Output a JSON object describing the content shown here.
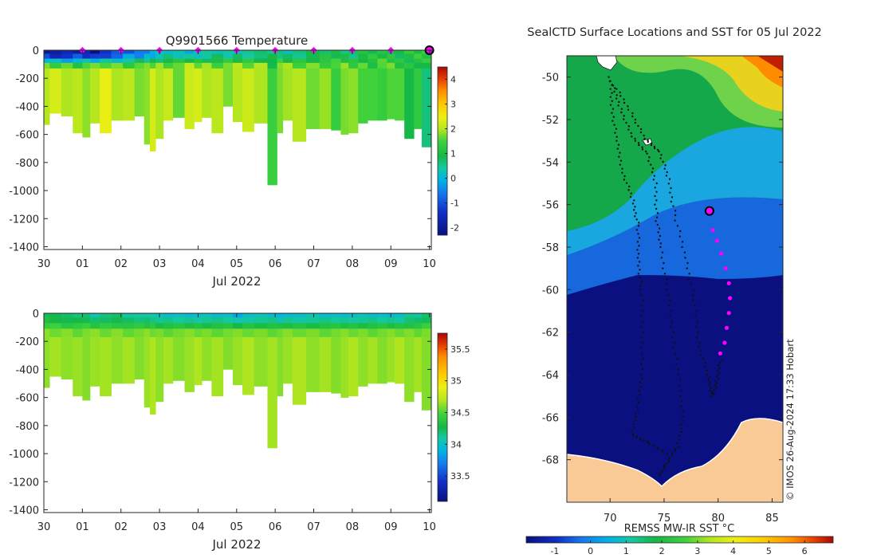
{
  "panels": {
    "temperature": {
      "title": "Q9901566  Temperature",
      "xlabel": "Jul 2022"
    },
    "salinity": {
      "title": "",
      "xlabel": "Jul 2022"
    },
    "map": {
      "title": "SealCTD Surface Locations and SST for 05 Jul 2022",
      "colorbar_label": "REMSS MW-IR SST °C",
      "credit": "© IMOS 26-Aug-2024 17:33 Hobart"
    }
  },
  "colors": {
    "land": "#f9c996",
    "deep_blue": "#0a1080",
    "marker": "#ff00ff"
  },
  "chart_data": [
    {
      "type": "heatmap",
      "name": "temperature-section",
      "title": "Q9901566  Temperature",
      "xlabel": "Jul 2022",
      "ylabel": "",
      "x_tick_labels": [
        "30",
        "01",
        "02",
        "03",
        "04",
        "05",
        "06",
        "07",
        "08",
        "09",
        "10"
      ],
      "x_ticks_days": [
        0,
        1,
        2,
        3,
        4,
        5,
        6,
        7,
        8,
        9,
        10
      ],
      "xlim_days": [
        0,
        10.05
      ],
      "ylim": [
        -1420,
        0
      ],
      "y_ticks": [
        0,
        -200,
        -400,
        -600,
        -800,
        -1000,
        -1200,
        -1400
      ],
      "y_tick_labels": [
        "0",
        "-200",
        "-400",
        "-600",
        "-800",
        "-1000",
        "-1200",
        "-1400"
      ],
      "colorbar_ticks": [
        4,
        3,
        2,
        1,
        0,
        -1,
        -2
      ],
      "colorbar_tick_labels": [
        "4",
        "3",
        "2",
        "1",
        "0",
        "-1",
        "-2"
      ],
      "colorbar_range": [
        -2.3,
        4.5
      ],
      "surface_marker_days": [
        1,
        2,
        3,
        4,
        5,
        6,
        7,
        8,
        9
      ],
      "latest_marker_day": 10,
      "profile_days": [
        0,
        0.3,
        0.6,
        0.9,
        1.1,
        1.3,
        1.6,
        1.9,
        2.2,
        2.5,
        2.7,
        2.8,
        3.0,
        3.2,
        3.5,
        3.8,
        4.0,
        4.2,
        4.5,
        4.8,
        5.0,
        5.3,
        5.6,
        6.0,
        6.1,
        6.3,
        6.6,
        7.0,
        7.3,
        7.6,
        7.8,
        8.0,
        8.3,
        8.5,
        8.8,
        9.0,
        9.2,
        9.5,
        9.7,
        9.9
      ],
      "max_depth_m": [
        -530,
        -450,
        -470,
        -590,
        -620,
        -520,
        -590,
        -500,
        -500,
        -470,
        -670,
        -720,
        -630,
        -500,
        -480,
        -560,
        -510,
        -480,
        -590,
        -400,
        -510,
        -580,
        -520,
        -960,
        -590,
        -500,
        -650,
        -560,
        -560,
        -570,
        -600,
        -590,
        -520,
        -500,
        -500,
        -490,
        -500,
        -630,
        -560,
        -690
      ],
      "surface_temp_c": [
        -1.8,
        -1.9,
        -2.0,
        -1.8,
        -1.9,
        -2.0,
        -1.5,
        -1.4,
        -1.0,
        -0.9,
        -0.5,
        -0.3,
        -0.2,
        0.0,
        0.0,
        -0.1,
        0.1,
        0.0,
        0.2,
        0.1,
        0.3,
        0.4,
        0.3,
        0.5,
        0.4,
        0.3,
        0.5,
        0.6,
        0.7,
        0.8,
        0.7,
        0.6,
        0.8,
        0.9,
        1.0,
        1.0,
        0.9,
        1.0,
        1.1,
        1.2
      ],
      "deep_temp_c": [
        2.0,
        2.0,
        2.1,
        1.9,
        2.1,
        2.0,
        2.2,
        2.1,
        1.9,
        2.0,
        1.8,
        2.0,
        2.1,
        2.0,
        1.9,
        2.2,
        2.0,
        2.1,
        1.9,
        2.0,
        2.0,
        1.9,
        2.1,
        1.2,
        2.0,
        1.9,
        1.7,
        1.8,
        1.7,
        1.6,
        1.7,
        1.5,
        1.6,
        1.3,
        1.6,
        1.5,
        1.2,
        1.0,
        1.1,
        0.8
      ]
    },
    {
      "type": "heatmap",
      "name": "salinity-section",
      "title": "",
      "xlabel": "Jul 2022",
      "ylabel": "",
      "x_tick_labels": [
        "30",
        "01",
        "02",
        "03",
        "04",
        "05",
        "06",
        "07",
        "08",
        "09",
        "10"
      ],
      "x_ticks_days": [
        0,
        1,
        2,
        3,
        4,
        5,
        6,
        7,
        8,
        9,
        10
      ],
      "xlim_days": [
        0,
        10.05
      ],
      "ylim": [
        -1420,
        0
      ],
      "y_ticks": [
        0,
        -200,
        -400,
        -600,
        -800,
        -1000,
        -1200,
        -1400
      ],
      "y_tick_labels": [
        "0",
        "-200",
        "-400",
        "-600",
        "-800",
        "-1000",
        "-1200",
        "-1400"
      ],
      "colorbar_ticks": [
        35.5,
        35,
        34.5,
        34,
        33.5
      ],
      "colorbar_tick_labels": [
        "35.5",
        "35",
        "34.5",
        "34",
        "33.5"
      ],
      "colorbar_range": [
        33.1,
        35.75
      ],
      "profile_days": [
        0,
        0.3,
        0.6,
        0.9,
        1.1,
        1.3,
        1.6,
        1.9,
        2.2,
        2.5,
        2.7,
        2.8,
        3.0,
        3.2,
        3.5,
        3.8,
        4.0,
        4.2,
        4.5,
        4.8,
        5.0,
        5.3,
        5.6,
        6.0,
        6.1,
        6.3,
        6.6,
        7.0,
        7.3,
        7.6,
        7.8,
        8.0,
        8.3,
        8.5,
        8.8,
        9.0,
        9.2,
        9.5,
        9.7,
        9.9
      ],
      "max_depth_m": [
        -530,
        -450,
        -470,
        -590,
        -620,
        -520,
        -590,
        -500,
        -500,
        -470,
        -670,
        -720,
        -630,
        -500,
        -480,
        -560,
        -510,
        -480,
        -590,
        -400,
        -510,
        -580,
        -520,
        -960,
        -590,
        -500,
        -650,
        -560,
        -560,
        -570,
        -600,
        -590,
        -520,
        -500,
        -500,
        -490,
        -500,
        -630,
        -560,
        -690
      ],
      "surface_sal": [
        34.3,
        34.3,
        34.2,
        34.2,
        34.2,
        34.1,
        34.2,
        34.2,
        34.1,
        34.1,
        34.1,
        34.1,
        34.0,
        34.0,
        34.0,
        34.0,
        34.0,
        34.0,
        34.0,
        34.0,
        33.9,
        34.0,
        34.0,
        34.0,
        33.9,
        34.0,
        34.0,
        34.0,
        34.0,
        34.0,
        34.0,
        34.0,
        34.0,
        34.0,
        34.0,
        34.0,
        34.0,
        34.1,
        34.1,
        34.2
      ],
      "deep_sal": [
        34.7,
        34.7,
        34.72,
        34.7,
        34.72,
        34.72,
        34.7,
        34.72,
        34.72,
        34.72,
        34.72,
        34.72,
        34.72,
        34.72,
        34.72,
        34.72,
        34.72,
        34.72,
        34.72,
        34.72,
        34.72,
        34.72,
        34.72,
        34.72,
        34.72,
        34.72,
        34.72,
        34.72,
        34.72,
        34.72,
        34.72,
        34.72,
        34.72,
        34.72,
        34.72,
        34.72,
        34.72,
        34.72,
        34.72,
        34.72
      ]
    },
    {
      "type": "heatmap",
      "name": "sst-map",
      "title": "SealCTD Surface Locations and SST for 05 Jul 2022",
      "xlabel": "REMSS MW-IR SST °C",
      "lon_range": [
        66,
        86
      ],
      "lat_range": [
        -70,
        -49
      ],
      "x_ticks": [
        70,
        75,
        80,
        85
      ],
      "x_tick_labels": [
        "70",
        "75",
        "80",
        "85"
      ],
      "y_ticks": [
        -50,
        -52,
        -54,
        -56,
        -58,
        -60,
        -62,
        -64,
        -66,
        -68
      ],
      "y_tick_labels": [
        "-50",
        "-52",
        "-54",
        "-56",
        "-58",
        "-60",
        "-62",
        "-64",
        "-66",
        "-68"
      ],
      "colorbar_ticks": [
        -1,
        0,
        1,
        2,
        3,
        4,
        5,
        6
      ],
      "colorbar_tick_labels": [
        "-1",
        "0",
        "1",
        "2",
        "3",
        "4",
        "5",
        "6"
      ],
      "colorbar_range": [
        -1.8,
        6.8
      ],
      "recent_positions": [
        [
          79.5,
          -57.2
        ],
        [
          79.9,
          -57.7
        ],
        [
          80.3,
          -58.3
        ],
        [
          80.7,
          -59.0
        ],
        [
          81.0,
          -59.7
        ],
        [
          81.1,
          -60.4
        ],
        [
          81.0,
          -61.1
        ],
        [
          80.8,
          -61.8
        ],
        [
          80.6,
          -62.5
        ],
        [
          80.2,
          -63.0
        ]
      ],
      "latest_position": [
        79.2,
        -56.3
      ],
      "track_west": [
        [
          70.0,
          -50.0
        ],
        [
          70.2,
          -51.5
        ],
        [
          70.6,
          -53.0
        ],
        [
          71.2,
          -54.5
        ],
        [
          72.1,
          -55.8
        ],
        [
          72.6,
          -57.0
        ],
        [
          72.6,
          -58.5
        ],
        [
          72.9,
          -60.0
        ],
        [
          73.0,
          -62.0
        ],
        [
          72.9,
          -64.0
        ],
        [
          72.6,
          -65.5
        ],
        [
          72.0,
          -66.8
        ],
        [
          73.5,
          -67.2
        ],
        [
          75.5,
          -67.8
        ]
      ],
      "track_mid": [
        [
          70.1,
          -50.2
        ],
        [
          71.0,
          -51.5
        ],
        [
          72.0,
          -52.8
        ],
        [
          73.5,
          -53.6
        ],
        [
          74.2,
          -55.0
        ],
        [
          74.3,
          -56.6
        ],
        [
          74.7,
          -58.0
        ],
        [
          75.3,
          -60.0
        ],
        [
          75.8,
          -62.0
        ],
        [
          76.3,
          -64.0
        ],
        [
          76.8,
          -66.0
        ],
        [
          76.2,
          -67.4
        ],
        [
          75.2,
          -68.2
        ],
        [
          74.5,
          -68.8
        ]
      ],
      "track_east": [
        [
          70.4,
          -50.4
        ],
        [
          72.0,
          -51.7
        ],
        [
          73.2,
          -52.9
        ],
        [
          74.6,
          -53.5
        ],
        [
          75.4,
          -54.8
        ],
        [
          76.0,
          -56.5
        ],
        [
          77.0,
          -58.5
        ],
        [
          77.8,
          -60.5
        ],
        [
          78.2,
          -62.5
        ],
        [
          79.0,
          -64.0
        ],
        [
          79.5,
          -65.0
        ],
        [
          79.9,
          -64.2
        ],
        [
          80.3,
          -63.2
        ]
      ]
    }
  ]
}
